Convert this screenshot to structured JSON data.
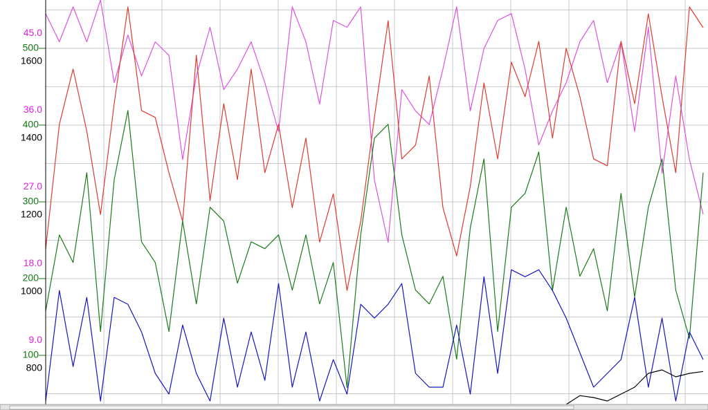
{
  "chart_data": {
    "type": "line",
    "ylim": [
      1.5,
      48.9
    ],
    "yticks": [
      {
        "value": 9,
        "label": "9.0"
      },
      {
        "value": 18,
        "label": "18.0"
      },
      {
        "value": 27,
        "label": "27.0"
      },
      {
        "value": 36,
        "label": "36.0"
      },
      {
        "value": 45,
        "label": "45.0"
      }
    ],
    "ytick_color": "#e020e0",
    "y2lim": [
      36,
      563
    ],
    "y2ticks": [
      100,
      200,
      300,
      400,
      500
    ],
    "y2tick_color": "#117711",
    "y3lim": [
      706,
      1760
    ],
    "y3ticks": [
      800,
      1000,
      1200,
      1400,
      1600
    ],
    "y3tick_color": "#000000",
    "grid": true,
    "series": [
      {
        "color": "#e050e0",
        "axis": "y",
        "values": [
          47.3,
          44.0,
          48.1,
          44.0,
          48.9,
          39.2,
          44.8,
          40.0,
          44.0,
          42.4,
          30.2,
          40.0,
          45.7,
          38.4,
          40.8,
          44.0,
          39.2,
          33.5,
          48.1,
          44.0,
          36.7,
          46.5,
          45.7,
          48.1,
          27.8,
          20.5,
          38.4,
          35.9,
          34.3,
          40.8,
          48.1,
          35.9,
          43.2,
          46.5,
          47.3,
          40.8,
          31.9,
          35.9,
          39.2,
          44.0,
          46.5,
          39.2,
          44.0,
          33.5,
          45.7,
          28.6,
          40.0,
          30.2,
          23.8
        ]
      },
      {
        "color": "#e03a30",
        "axis": "y3",
        "values": [
          1111,
          1436,
          1580,
          1418,
          1201,
          1490,
          1742,
          1472,
          1454,
          1310,
          1183,
          1616,
          1237,
          1490,
          1292,
          1580,
          1310,
          1436,
          1219,
          1400,
          1129,
          1255,
          1003,
          1183,
          1454,
          1706,
          1346,
          1382,
          1562,
          1219,
          1093,
          1274,
          1544,
          1346,
          1598,
          1508,
          1652,
          1400,
          1634,
          1508,
          1346,
          1328,
          1652,
          1490,
          1724,
          1508,
          1310,
          1742,
          1688
        ]
      },
      {
        "color": "#1a7a1a",
        "axis": "y2",
        "values": [
          158,
          257,
          221,
          338,
          131,
          329,
          419,
          248,
          221,
          131,
          275,
          167,
          293,
          275,
          194,
          248,
          239,
          257,
          185,
          257,
          167,
          221,
          58,
          257,
          383,
          401,
          257,
          185,
          167,
          203,
          95,
          266,
          356,
          131,
          293,
          311,
          365,
          185,
          293,
          203,
          239,
          158,
          311,
          176,
          293,
          356,
          185,
          122,
          338
        ]
      },
      {
        "color": "#1414c0",
        "axis": "y3",
        "values": [
          715,
          1003,
          805,
          985,
          715,
          985,
          967,
          895,
          787,
          733,
          913,
          787,
          715,
          931,
          751,
          895,
          769,
          1021,
          751,
          895,
          715,
          823,
          733,
          967,
          931,
          967,
          1021,
          787,
          751,
          751,
          913,
          733,
          1039,
          787,
          1057,
          1039,
          1057,
          1003,
          931,
          841,
          751,
          787,
          823,
          985,
          751,
          931,
          715,
          895,
          823
        ]
      },
      {
        "color": "#000000",
        "axis": "y3",
        "values": [
          null,
          null,
          null,
          null,
          null,
          null,
          null,
          null,
          null,
          null,
          null,
          null,
          null,
          null,
          null,
          null,
          null,
          null,
          null,
          null,
          null,
          null,
          null,
          null,
          null,
          null,
          null,
          null,
          null,
          null,
          null,
          null,
          null,
          null,
          null,
          null,
          null,
          null,
          706,
          729,
          724,
          715,
          733,
          751,
          787,
          796,
          778,
          787,
          792
        ]
      }
    ]
  }
}
